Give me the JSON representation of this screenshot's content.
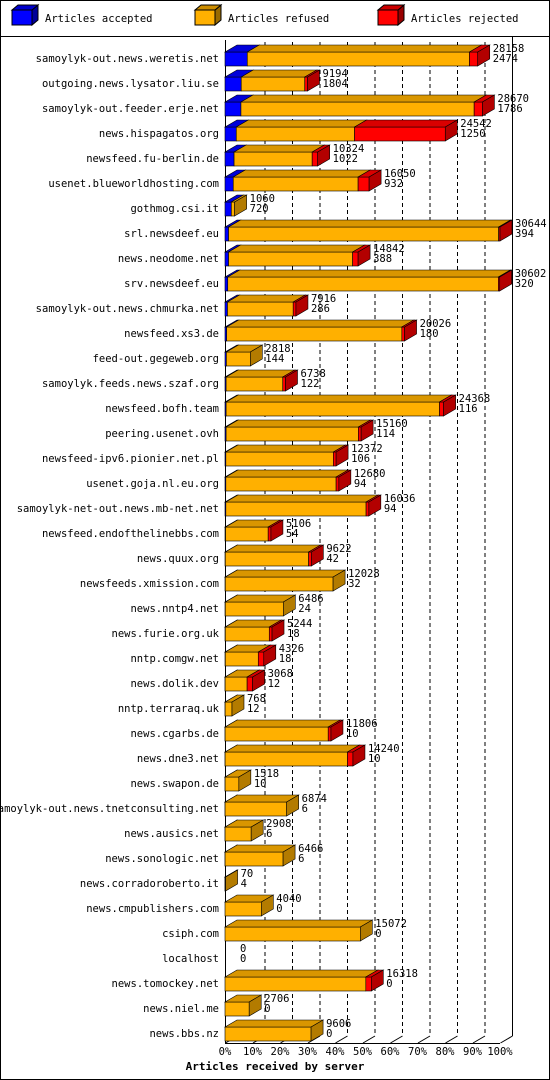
{
  "chart_data": {
    "type": "bar",
    "orientation": "horizontal",
    "stacked": true,
    "x_label": "Articles received by server",
    "categories": [
      "samoylyk-out.news.weretis.net",
      "outgoing.news.lysator.liu.se",
      "samoylyk-out.feeder.erje.net",
      "news.hispagatos.org",
      "newsfeed.fu-berlin.de",
      "usenet.blueworldhosting.com",
      "gothmog.csi.it",
      "srl.newsdeef.eu",
      "news.neodome.net",
      "srv.newsdeef.eu",
      "samoylyk-out.news.chmurka.net",
      "newsfeed.xs3.de",
      "feed-out.gegeweb.org",
      "samoylyk.feeds.news.szaf.org",
      "newsfeed.bofh.team",
      "peering.usenet.ovh",
      "newsfeed-ipv6.pionier.net.pl",
      "usenet.goja.nl.eu.org",
      "samoylyk-net-out.news.mb-net.net",
      "newsfeed.endofthelinebbs.com",
      "news.quux.org",
      "newsfeeds.xmission.com",
      "news.nntp4.net",
      "news.furie.org.uk",
      "nntp.comgw.net",
      "news.dolik.dev",
      "nntp.terraraq.uk",
      "news.cgarbs.de",
      "news.dne3.net",
      "news.swapon.de",
      "samoylyk-out.news.tnetconsulting.net",
      "news.ausics.net",
      "news.sonologic.net",
      "news.corradoroberto.it",
      "news.cmpublishers.com",
      "csiph.com",
      "localhost",
      "news.tomockey.net",
      "news.niel.me",
      "news.bbs.nz"
    ],
    "series": [
      {
        "name": "Articles accepted",
        "color": "#0000ff",
        "values": [
          8.1,
          5.9,
          5.8,
          4.1,
          3.3,
          3.0,
          2.3,
          1.3,
          1.3,
          1.0,
          0.9,
          0.6,
          0.5,
          0.4,
          0.4,
          0.4,
          0.3,
          0.3,
          0.3,
          0.2,
          0.1,
          0.1,
          0.1,
          0.1,
          0.1,
          0.04,
          0.04,
          0.03,
          0.03,
          0.03,
          0.02,
          0.02,
          0.02,
          0.01,
          0,
          0,
          0,
          0,
          0,
          0
        ]
      },
      {
        "name": "Articles refused",
        "color": "#ffb000",
        "values": [
          80.8,
          23.1,
          84.8,
          43.0,
          28.4,
          45.4,
          1.2,
          98.2,
          45.1,
          98.4,
          23.9,
          63.7,
          8.7,
          20.6,
          77.6,
          48.1,
          39.1,
          40.1,
          51.0,
          15.5,
          30.3,
          39.2,
          21.1,
          16.0,
          12.0,
          8.0,
          2.5,
          37.5,
          44.5,
          5.0,
          22.4,
          9.5,
          21.1,
          0.2,
          13.2,
          49.2,
          0,
          51.2,
          8.8,
          31.3
        ]
      },
      {
        "name": "Articles rejected",
        "color": "#ff0000",
        "values": [
          3,
          1,
          3,
          33,
          2,
          4,
          0,
          0.5,
          2,
          0.5,
          1,
          1,
          0,
          1,
          1.5,
          1,
          1,
          1,
          1,
          1,
          1,
          0,
          0,
          1,
          2,
          2,
          0,
          1,
          2,
          0,
          0,
          0,
          0,
          0,
          0,
          0,
          0,
          2,
          0,
          0
        ]
      }
    ],
    "offered": [
      28158,
      9194,
      28670,
      24542,
      10324,
      16050,
      1060,
      30644,
      14842,
      30602,
      7916,
      20026,
      2818,
      6738,
      24368,
      15160,
      12372,
      12680,
      16036,
      5106,
      9622,
      12028,
      6486,
      5244,
      4326,
      3068,
      768,
      11806,
      14240,
      1518,
      6874,
      2908,
      6466,
      70,
      4040,
      15072,
      0,
      16318,
      2706,
      9606
    ],
    "accepted": [
      2474,
      1804,
      1786,
      1250,
      1022,
      932,
      720,
      394,
      388,
      320,
      286,
      180,
      144,
      122,
      116,
      114,
      106,
      94,
      94,
      54,
      42,
      32,
      24,
      18,
      18,
      12,
      12,
      10,
      10,
      10,
      6,
      6,
      6,
      4,
      0,
      0,
      0,
      0,
      0,
      0
    ],
    "xlim": [
      0,
      100
    ],
    "xticks": [
      {
        "value": 0,
        "label": "0%"
      },
      {
        "value": 10,
        "label": "10%"
      },
      {
        "value": 20,
        "label": "20%"
      },
      {
        "value": 30,
        "label": "30%"
      },
      {
        "value": 40,
        "label": "40%"
      },
      {
        "value": 50,
        "label": "50%"
      },
      {
        "value": 60,
        "label": "60%"
      },
      {
        "value": 70,
        "label": "70%"
      },
      {
        "value": 80,
        "label": "80%"
      },
      {
        "value": 90,
        "label": "90%"
      },
      {
        "value": 100,
        "label": "100%"
      }
    ],
    "grid": true
  }
}
